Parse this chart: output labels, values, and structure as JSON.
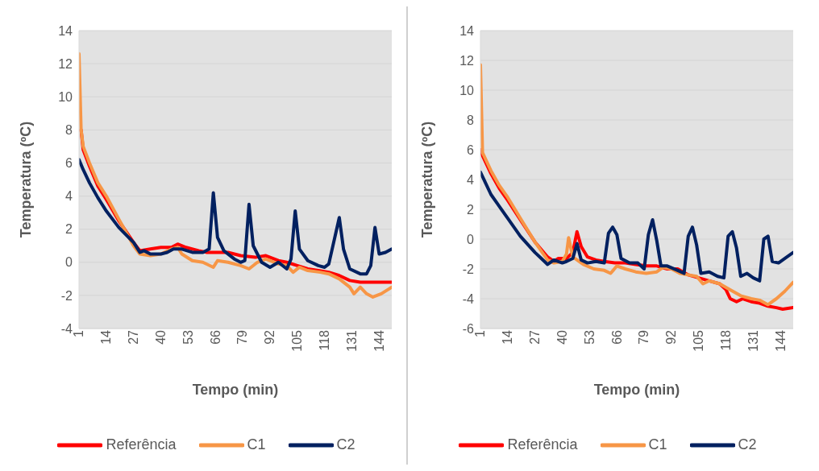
{
  "chart_data": [
    {
      "type": "line",
      "xlabel": "Tempo (min)",
      "ylabel": "Temperatura (ºC)",
      "xlim": [
        1,
        150
      ],
      "xticks": [
        1,
        14,
        27,
        40,
        53,
        66,
        79,
        92,
        105,
        118,
        131,
        144
      ],
      "ylim": [
        -4,
        14
      ],
      "yticks": [
        -4,
        -2,
        0,
        2,
        4,
        6,
        8,
        10,
        12,
        14
      ],
      "grid": "y",
      "legend": "bottom",
      "marker": "none",
      "line_style": "solid",
      "series": [
        {
          "name": "Referência",
          "color": "#ff0000",
          "x": [
            2,
            3,
            6,
            10,
            14,
            20,
            27,
            30,
            35,
            40,
            45,
            48,
            52,
            58,
            62,
            66,
            72,
            78,
            85,
            90,
            96,
            100,
            105,
            110,
            115,
            120,
            125,
            130,
            135,
            140,
            145,
            150
          ],
          "values": [
            8,
            6.8,
            5.8,
            4.6,
            3.8,
            2.5,
            1.2,
            0.7,
            0.8,
            0.9,
            0.9,
            1.1,
            0.9,
            0.7,
            0.6,
            0.6,
            0.6,
            0.4,
            0.3,
            0.4,
            0.1,
            0,
            -0.2,
            -0.4,
            -0.5,
            -0.6,
            -0.8,
            -1.1,
            -1.2,
            -1.2,
            -1.2,
            -1.2
          ]
        },
        {
          "name": "C1",
          "color": "#f79646",
          "x": [
            1,
            2,
            3,
            6,
            10,
            14,
            20,
            27,
            30,
            35,
            40,
            45,
            48,
            50,
            55,
            60,
            65,
            67,
            72,
            78,
            82,
            86,
            90,
            96,
            100,
            103,
            106,
            110,
            116,
            120,
            125,
            130,
            132,
            135,
            138,
            141,
            145,
            150
          ],
          "values": [
            12.6,
            8,
            7,
            6,
            4.8,
            4,
            2.6,
            1,
            0.5,
            0.4,
            0.5,
            0.8,
            0.9,
            0.5,
            0.1,
            0,
            -0.3,
            0.1,
            0,
            -0.2,
            -0.4,
            0,
            0.2,
            -0.1,
            -0.2,
            -0.6,
            -0.3,
            -0.5,
            -0.6,
            -0.7,
            -1,
            -1.5,
            -1.9,
            -1.5,
            -1.9,
            -2.1,
            -1.9,
            -1.5
          ]
        },
        {
          "name": "C2",
          "color": "#002060",
          "x": [
            1,
            3,
            6,
            10,
            14,
            20,
            27,
            30,
            32,
            35,
            40,
            43,
            46,
            50,
            55,
            60,
            63,
            65,
            67,
            70,
            75,
            78,
            80,
            82,
            84,
            88,
            92,
            96,
            100,
            102,
            104,
            106,
            110,
            115,
            118,
            120,
            125,
            127,
            130,
            135,
            138,
            140,
            142,
            144,
            147,
            150
          ],
          "values": [
            6.2,
            5.6,
            4.8,
            3.9,
            3.1,
            2.1,
            1.2,
            0.6,
            0.7,
            0.5,
            0.5,
            0.6,
            0.8,
            0.8,
            0.6,
            0.6,
            0.8,
            4.2,
            1.5,
            0.7,
            0.2,
            0,
            0.1,
            3.5,
            1,
            0,
            -0.3,
            0,
            -0.4,
            0.2,
            3.1,
            0.8,
            0.1,
            -0.2,
            -0.3,
            -0.1,
            2.7,
            0.8,
            -0.4,
            -0.7,
            -0.7,
            -0.2,
            2.1,
            0.5,
            0.6,
            0.8
          ]
        }
      ]
    },
    {
      "type": "line",
      "xlabel": "Tempo (min)",
      "ylabel": "Temperatura (ºC)",
      "xlim": [
        1,
        150
      ],
      "xticks": [
        1,
        14,
        27,
        40,
        53,
        66,
        79,
        92,
        105,
        118,
        131,
        144
      ],
      "ylim": [
        -6,
        14
      ],
      "yticks": [
        -6,
        -4,
        -2,
        0,
        2,
        4,
        6,
        8,
        10,
        12,
        14
      ],
      "grid": "y",
      "legend": "bottom",
      "marker": "none",
      "line_style": "solid",
      "series": [
        {
          "name": "Referência",
          "color": "#ff0000",
          "x": [
            1,
            2,
            6,
            10,
            14,
            20,
            27,
            30,
            33,
            36,
            38,
            42,
            45,
            47,
            49,
            52,
            56,
            60,
            65,
            70,
            75,
            80,
            85,
            90,
            95,
            100,
            105,
            110,
            115,
            118,
            120,
            123,
            126,
            130,
            134,
            138,
            142,
            145,
            150
          ],
          "values": [
            6,
            5.6,
            4.4,
            3.4,
            2.6,
            1.3,
            -0.2,
            -0.7,
            -1.2,
            -1.5,
            -1.3,
            -1.3,
            -0.9,
            0.5,
            -0.5,
            -1.2,
            -1.4,
            -1.5,
            -1.6,
            -1.6,
            -1.7,
            -1.8,
            -1.8,
            -2,
            -2,
            -2.4,
            -2.6,
            -2.8,
            -3,
            -3.4,
            -4,
            -4.2,
            -4,
            -4.2,
            -4.3,
            -4.5,
            -4.6,
            -4.7,
            -4.6
          ]
        },
        {
          "name": "C1",
          "color": "#f79646",
          "x": [
            1,
            2,
            6,
            10,
            14,
            20,
            27,
            30,
            33,
            36,
            40,
            42,
            43,
            45,
            50,
            55,
            60,
            63,
            66,
            70,
            75,
            80,
            85,
            88,
            92,
            96,
            100,
            104,
            107,
            110,
            115,
            120,
            125,
            130,
            134,
            138,
            142,
            146,
            150
          ],
          "values": [
            11.7,
            5.8,
            4.6,
            3.6,
            2.8,
            1.4,
            -0.2,
            -0.8,
            -1.4,
            -1.6,
            -1.5,
            -1,
            0.1,
            -1.2,
            -1.7,
            -2,
            -2.1,
            -2.3,
            -1.8,
            -2,
            -2.2,
            -2.3,
            -2.2,
            -1.9,
            -2,
            -2.3,
            -2.4,
            -2.5,
            -3,
            -2.8,
            -3,
            -3.4,
            -3.8,
            -4,
            -4.1,
            -4.4,
            -4,
            -3.5,
            -2.9
          ]
        },
        {
          "name": "C2",
          "color": "#002060",
          "x": [
            1,
            3,
            6,
            10,
            14,
            20,
            27,
            30,
            33,
            36,
            40,
            42,
            45,
            47,
            49,
            52,
            56,
            60,
            62,
            64,
            66,
            68,
            72,
            76,
            79,
            81,
            83,
            85,
            87,
            90,
            95,
            98,
            100,
            102,
            104,
            106,
            110,
            114,
            117,
            119,
            121,
            123,
            125,
            128,
            131,
            134,
            136,
            138,
            140,
            143,
            147,
            150
          ],
          "values": [
            4.5,
            3.9,
            3,
            2.2,
            1.4,
            0.2,
            -0.9,
            -1.3,
            -1.7,
            -1.4,
            -1.6,
            -1.5,
            -1.3,
            -0.3,
            -1.4,
            -1.6,
            -1.5,
            -1.6,
            0.4,
            0.8,
            0.3,
            -1.3,
            -1.6,
            -1.6,
            -2,
            0.3,
            1.3,
            -0.1,
            -1.8,
            -1.8,
            -2.1,
            -2.3,
            0.2,
            0.8,
            -0.4,
            -2.3,
            -2.2,
            -2.5,
            -2.6,
            0.2,
            0.5,
            -0.6,
            -2.5,
            -2.3,
            -2.6,
            -2.8,
            0,
            0.2,
            -1.5,
            -1.6,
            -1.2,
            -0.9
          ]
        }
      ]
    }
  ]
}
